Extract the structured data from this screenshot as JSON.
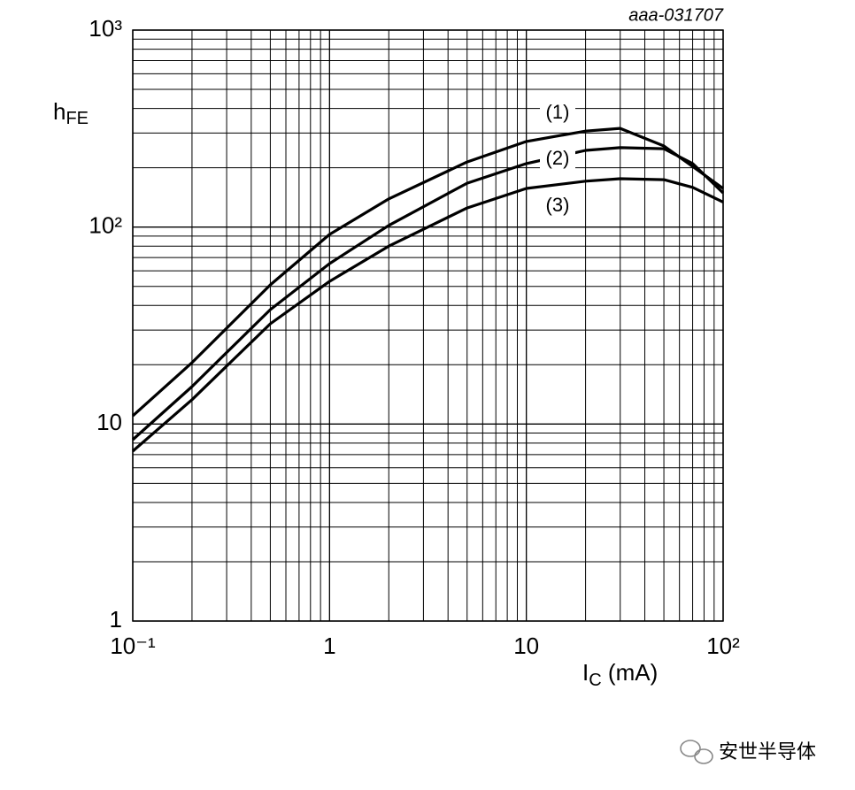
{
  "chart_data": {
    "type": "line",
    "annotation": "aaa-031707",
    "ylabel": {
      "text": "h",
      "sub": "FE"
    },
    "xlabel": {
      "text": "I",
      "sub": "C",
      "unit": " (mA)"
    },
    "x": [
      0.1,
      0.2,
      0.5,
      1,
      2,
      5,
      10,
      20,
      30,
      50,
      70,
      100
    ],
    "series": [
      {
        "name": "(1)",
        "color": "#000000",
        "values": [
          11.0,
          20.5,
          50.9,
          91.7,
          139,
          214,
          272,
          307,
          317,
          258,
          203,
          157
        ]
      },
      {
        "name": "(2)",
        "color": "#000000",
        "values": [
          8.33,
          15.5,
          38.1,
          65.2,
          102,
          167,
          210,
          245,
          253,
          250,
          210,
          149
        ]
      },
      {
        "name": "(3)",
        "color": "#000000",
        "values": [
          7.28,
          13.3,
          32.3,
          53,
          80,
          125,
          157,
          171,
          176,
          174,
          159,
          134
        ]
      }
    ],
    "log_x": true,
    "log_y": true,
    "grid": true,
    "xlim": [
      0.1,
      100
    ],
    "ylim": [
      1,
      1000
    ],
    "xticks": [
      {
        "value": 0.1,
        "label": "10⁻¹"
      },
      1,
      10,
      {
        "value": 100,
        "label": "10²"
      }
    ],
    "yticks": [
      1,
      10,
      {
        "value": 100,
        "label": "10²"
      },
      {
        "value": 1000,
        "label": "10³"
      }
    ]
  },
  "watermark": "安世半导体"
}
